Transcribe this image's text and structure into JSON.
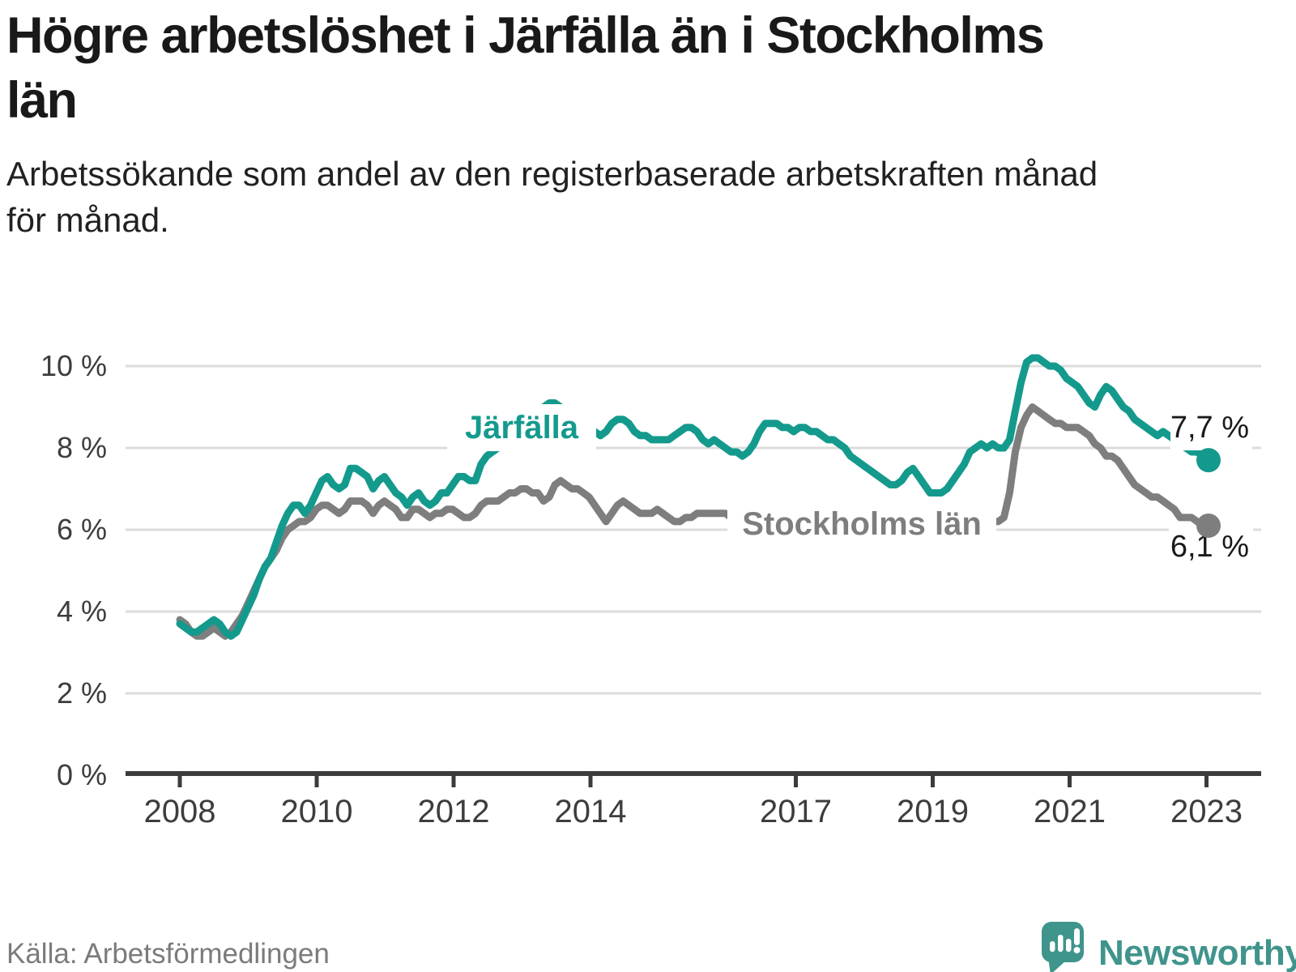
{
  "header": {
    "title_lines": [
      "Högre arbetslöshet i Järfälla än i Stockholms",
      "län"
    ],
    "subtitle_lines": [
      "Arbetssökande som andel av den registerbaserade arbetskraften månad",
      "för månad."
    ]
  },
  "footer": {
    "source": "Källa: Arbetsförmedlingen",
    "brand": "Newsworthy"
  },
  "colors": {
    "jarfalla": "#149a8d",
    "stockholm": "#7e7e7e",
    "end_label_text": "#1a1a1a",
    "axis": "#3c3c3c",
    "grid": "#dcdcdc",
    "tick_label": "#3d3d3d",
    "brand_teal": "#3f948b"
  },
  "chart_data": {
    "type": "line",
    "title": "Högre arbetslöshet i Järfälla än i Stockholms län",
    "subtitle": "Arbetssökande som andel av den registerbaserade arbetskraften månad för månad.",
    "x_start": "2008-01",
    "x_end": "2023-02",
    "freq": "monthly",
    "grid": "horizontal",
    "legend_position": "inline-labels",
    "ylim": [
      0,
      10.5
    ],
    "y_ticks": [
      0,
      2,
      4,
      6,
      8,
      10
    ],
    "y_tick_labels": [
      "0 %",
      "2 %",
      "4 %",
      "6 %",
      "8 %",
      "10 %"
    ],
    "x_tick_years": [
      2008,
      2010,
      2012,
      2014,
      2017,
      2019,
      2021,
      2023
    ],
    "x_tick_labels": [
      "2008",
      "2010",
      "2012",
      "2014",
      "2017",
      "2019",
      "2021",
      "2023"
    ],
    "series": [
      {
        "name": "Järfälla",
        "color": "#149a8d",
        "end_label": "7,7 %",
        "end_value": 7.7,
        "values": [
          3.7,
          3.6,
          3.5,
          3.5,
          3.6,
          3.7,
          3.8,
          3.7,
          3.5,
          3.4,
          3.5,
          3.8,
          4.1,
          4.4,
          4.8,
          5.1,
          5.3,
          5.7,
          6.1,
          6.4,
          6.6,
          6.6,
          6.4,
          6.6,
          6.9,
          7.2,
          7.3,
          7.1,
          7.0,
          7.1,
          7.5,
          7.5,
          7.4,
          7.3,
          7.0,
          7.2,
          7.3,
          7.1,
          6.9,
          6.8,
          6.6,
          6.8,
          6.9,
          6.7,
          6.6,
          6.7,
          6.9,
          6.9,
          7.1,
          7.3,
          7.3,
          7.2,
          7.2,
          7.6,
          7.8,
          7.9,
          8.0,
          8.1,
          8.2,
          8.3,
          8.5,
          8.6,
          8.8,
          8.9,
          9.0,
          9.1,
          9.1,
          9.0,
          8.8,
          8.8,
          8.7,
          8.6,
          8.5,
          8.4,
          8.3,
          8.4,
          8.6,
          8.7,
          8.7,
          8.6,
          8.4,
          8.3,
          8.3,
          8.2,
          8.2,
          8.2,
          8.2,
          8.3,
          8.4,
          8.5,
          8.5,
          8.4,
          8.2,
          8.1,
          8.2,
          8.1,
          8.0,
          7.9,
          7.9,
          7.8,
          7.9,
          8.1,
          8.4,
          8.6,
          8.6,
          8.6,
          8.5,
          8.5,
          8.4,
          8.5,
          8.5,
          8.4,
          8.4,
          8.3,
          8.2,
          8.2,
          8.1,
          8.0,
          7.8,
          7.7,
          7.6,
          7.5,
          7.4,
          7.3,
          7.2,
          7.1,
          7.1,
          7.2,
          7.4,
          7.5,
          7.3,
          7.1,
          6.9,
          6.9,
          6.9,
          7.0,
          7.2,
          7.4,
          7.6,
          7.9,
          8.0,
          8.1,
          8.0,
          8.1,
          8.0,
          8.0,
          8.2,
          8.9,
          9.6,
          10.1,
          10.2,
          10.2,
          10.1,
          10.0,
          10.0,
          9.9,
          9.7,
          9.6,
          9.5,
          9.3,
          9.1,
          9.0,
          9.3,
          9.5,
          9.4,
          9.2,
          9.0,
          8.9,
          8.7,
          8.6,
          8.5,
          8.4,
          8.3,
          8.4,
          8.3,
          8.2,
          8.1,
          8.0,
          7.9,
          7.9,
          7.8,
          7.7
        ]
      },
      {
        "name": "Stockholms län",
        "color": "#7e7e7e",
        "end_label": "6,1 %",
        "end_value": 6.1,
        "values": [
          3.8,
          3.7,
          3.5,
          3.4,
          3.4,
          3.5,
          3.6,
          3.5,
          3.4,
          3.5,
          3.7,
          3.9,
          4.2,
          4.5,
          4.8,
          5.1,
          5.3,
          5.5,
          5.8,
          6.0,
          6.1,
          6.2,
          6.2,
          6.3,
          6.5,
          6.6,
          6.6,
          6.5,
          6.4,
          6.5,
          6.7,
          6.7,
          6.7,
          6.6,
          6.4,
          6.6,
          6.7,
          6.6,
          6.5,
          6.3,
          6.3,
          6.5,
          6.5,
          6.4,
          6.3,
          6.4,
          6.4,
          6.5,
          6.5,
          6.4,
          6.3,
          6.3,
          6.4,
          6.6,
          6.7,
          6.7,
          6.7,
          6.8,
          6.9,
          6.9,
          7.0,
          7.0,
          6.9,
          6.9,
          6.7,
          6.8,
          7.1,
          7.2,
          7.1,
          7.0,
          7.0,
          6.9,
          6.8,
          6.6,
          6.4,
          6.2,
          6.4,
          6.6,
          6.7,
          6.6,
          6.5,
          6.4,
          6.4,
          6.4,
          6.5,
          6.4,
          6.3,
          6.2,
          6.2,
          6.3,
          6.3,
          6.4,
          6.4,
          6.4,
          6.4,
          6.4,
          6.4,
          6.3,
          6.3,
          6.2,
          6.3,
          6.3,
          6.4,
          6.4,
          6.4,
          6.3,
          6.3,
          6.3,
          6.3,
          6.3,
          6.2,
          6.2,
          6.1,
          6.2,
          6.3,
          6.3,
          6.2,
          6.2,
          6.1,
          6.1,
          6.0,
          6.0,
          5.9,
          5.9,
          5.9,
          5.9,
          6.0,
          6.0,
          6.0,
          5.9,
          5.9,
          5.9,
          5.9,
          5.9,
          5.9,
          6.0,
          6.0,
          6.1,
          6.2,
          6.2,
          6.2,
          6.1,
          6.1,
          6.2,
          6.2,
          6.3,
          6.9,
          7.9,
          8.5,
          8.8,
          9.0,
          8.9,
          8.8,
          8.7,
          8.6,
          8.6,
          8.5,
          8.5,
          8.5,
          8.4,
          8.3,
          8.1,
          8.0,
          7.8,
          7.8,
          7.7,
          7.5,
          7.3,
          7.1,
          7.0,
          6.9,
          6.8,
          6.8,
          6.7,
          6.6,
          6.5,
          6.3,
          6.3,
          6.3,
          6.2,
          6.1,
          6.1
        ]
      }
    ]
  }
}
